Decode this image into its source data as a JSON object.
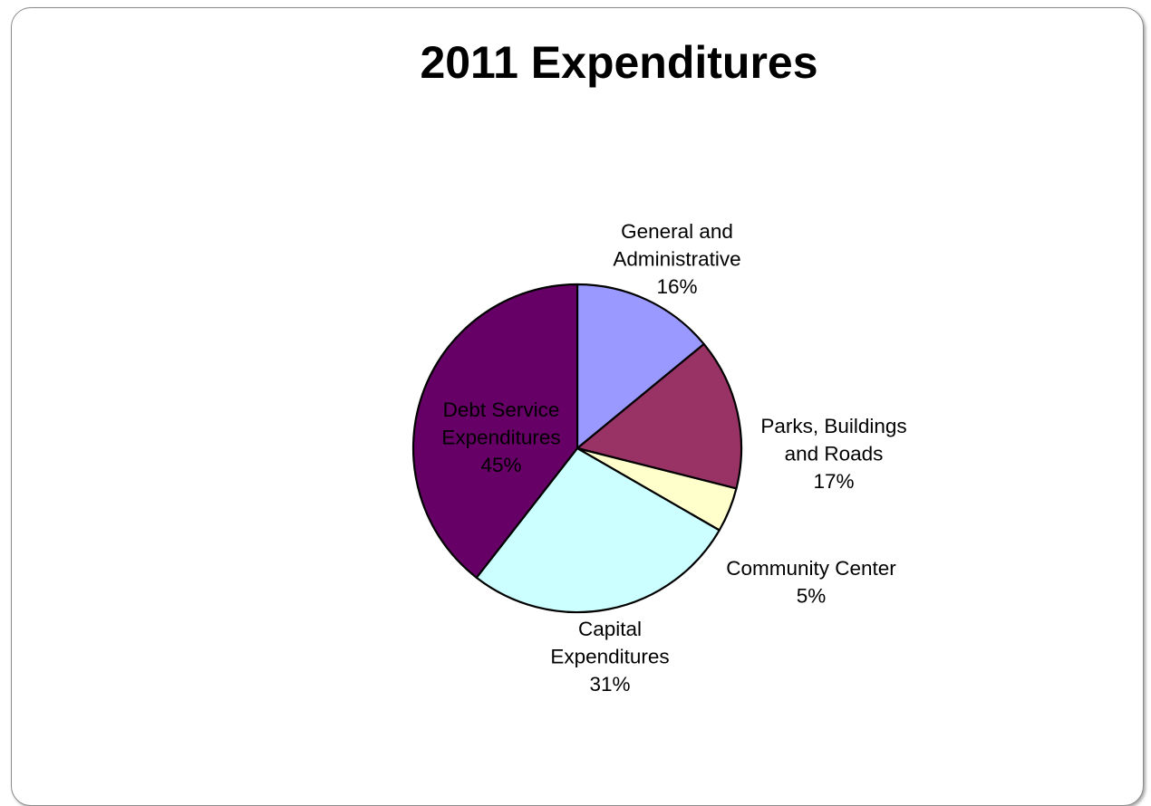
{
  "chart_data": {
    "type": "pie",
    "title": "2011 Expenditures",
    "slices": [
      {
        "label_lines": [
          "General and",
          "Administrative",
          "16%"
        ],
        "value": 16,
        "color": "#9999ff"
      },
      {
        "label_lines": [
          "Parks, Buildings",
          "and Roads",
          "17%"
        ],
        "value": 17,
        "color": "#993366"
      },
      {
        "label_lines": [
          "Community Center",
          "5%"
        ],
        "value": 5,
        "color": "#ffffcc"
      },
      {
        "label_lines": [
          "Capital",
          "Expenditures",
          "31%"
        ],
        "value": 31,
        "color": "#ccffff"
      },
      {
        "label_lines": [
          "Debt Service",
          "Expenditures",
          "45%"
        ],
        "value": 45,
        "color": "#660066"
      }
    ],
    "start_angle_deg": 0,
    "direction": "clockwise",
    "legend": "none"
  }
}
